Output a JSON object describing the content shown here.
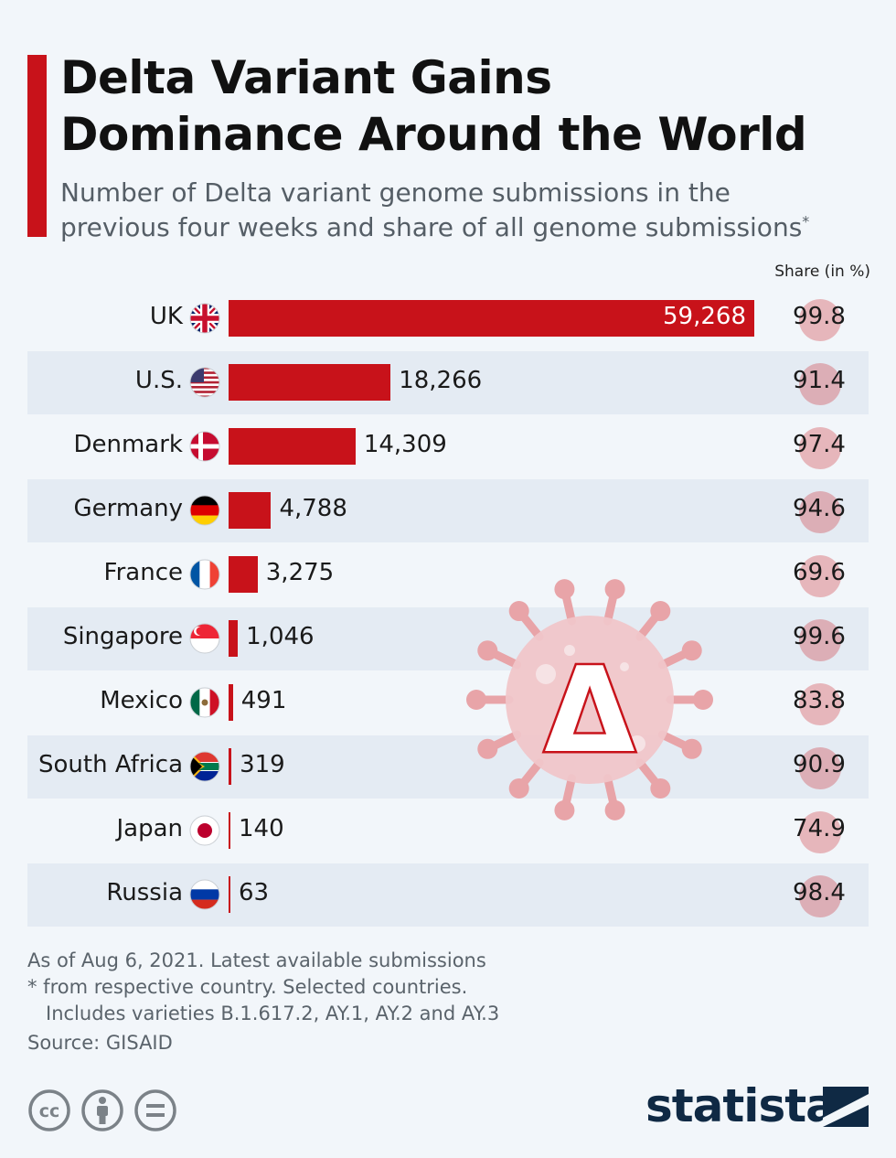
{
  "header": {
    "title_line1": "Delta Variant Gains",
    "title_line2": "Dominance Around the World",
    "subtitle_line1": "Number of Delta variant genome submissions in the",
    "subtitle_line2": "previous four weeks and share of all genome submissions",
    "subtitle_asterisk": "*",
    "share_header": "Share (in %)"
  },
  "colors": {
    "accent": "#c8121a",
    "band": "#e4ebf3",
    "background": "#f2f6fa",
    "brand": "#0f2944"
  },
  "chart_data": {
    "type": "bar",
    "orientation": "horizontal",
    "categories": [
      "UK",
      "U.S.",
      "Denmark",
      "Germany",
      "France",
      "Singapore",
      "Mexico",
      "South Africa",
      "Japan",
      "Russia"
    ],
    "values": [
      59268,
      18266,
      14309,
      4788,
      3275,
      1046,
      491,
      319,
      140,
      63
    ],
    "value_labels": [
      "59,268",
      "18,266",
      "14,309",
      "4,788",
      "3,275",
      "1,046",
      "491",
      "319",
      "140",
      "63"
    ],
    "share_values": [
      99.8,
      91.4,
      97.4,
      94.6,
      69.6,
      99.6,
      83.8,
      90.9,
      74.9,
      98.4
    ],
    "share_labels": [
      "99.8",
      "91.4",
      "97.4",
      "94.6",
      "69.6",
      "99.6",
      "83.8",
      "90.9",
      "74.9",
      "98.4"
    ],
    "flag_icons": [
      "uk-flag-icon",
      "us-flag-icon",
      "denmark-flag-icon",
      "germany-flag-icon",
      "france-flag-icon",
      "singapore-flag-icon",
      "mexico-flag-icon",
      "south-africa-flag-icon",
      "japan-flag-icon",
      "russia-flag-icon"
    ],
    "xlim": [
      0,
      59268
    ],
    "grid": false
  },
  "decoration": {
    "virus_symbol": "Δ"
  },
  "notes": {
    "line1": "As of Aug 6, 2021. Latest available submissions",
    "line2": "* from respective country. Selected countries.",
    "line3": "Includes varieties B.1.617.2, AY.1, AY.2 and AY.3",
    "source": "Source: GISAID"
  },
  "footer": {
    "license_icons": [
      "cc-icon",
      "attribution-icon",
      "no-derivatives-icon"
    ],
    "cc_text": "cc",
    "brand": "statista"
  }
}
